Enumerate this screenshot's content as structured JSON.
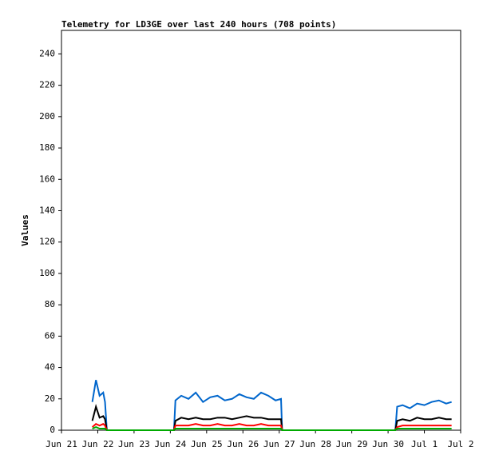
{
  "chart_data": {
    "type": "line",
    "title": "Telemetry for LD3GE over last 240 hours (708 points)",
    "y_label": "Values",
    "x": [
      0.85,
      0.95,
      1.05,
      1.15,
      1.2,
      1.25,
      1.6,
      2.0,
      2.4,
      2.8,
      3.1,
      3.14,
      3.3,
      3.5,
      3.7,
      3.9,
      4.1,
      4.3,
      4.5,
      4.7,
      4.9,
      5.1,
      5.3,
      5.5,
      5.7,
      5.9,
      6.05,
      6.08,
      6.4,
      6.8,
      7.2,
      7.6,
      8.0,
      8.4,
      8.8,
      9.2,
      9.25,
      9.4,
      9.6,
      9.8,
      10.0,
      10.2,
      10.4,
      10.6,
      10.75
    ],
    "series": [
      {
        "color": "#0066cc",
        "values": [
          18,
          32,
          22,
          24,
          18,
          0,
          0,
          0,
          0,
          0,
          0,
          19,
          22,
          20,
          24,
          18,
          21,
          22,
          19,
          20,
          23,
          21,
          20,
          24,
          22,
          19,
          20,
          0,
          0,
          0,
          0,
          0,
          0,
          0,
          0,
          0,
          15,
          16,
          14,
          17,
          16,
          18,
          19,
          17,
          18
        ]
      },
      {
        "color": "#000000",
        "values": [
          6,
          15,
          8,
          9,
          7,
          0,
          0,
          0,
          0,
          0,
          0,
          6,
          8,
          7,
          8,
          7,
          7,
          8,
          8,
          7,
          8,
          9,
          8,
          8,
          7,
          7,
          7,
          0,
          0,
          0,
          0,
          0,
          0,
          0,
          0,
          0,
          6,
          7,
          6,
          8,
          7,
          7,
          8,
          7,
          7
        ]
      },
      {
        "color": "#ff0000",
        "values": [
          2,
          4,
          3,
          4,
          3,
          0,
          0,
          0,
          0,
          0,
          0,
          3,
          3,
          3,
          4,
          3,
          3,
          4,
          3,
          3,
          4,
          3,
          3,
          4,
          3,
          3,
          3,
          0,
          0,
          0,
          0,
          0,
          0,
          0,
          0,
          0,
          2,
          3,
          3,
          3,
          3,
          3,
          3,
          3,
          3
        ]
      },
      {
        "color": "#00aa00",
        "values": [
          1,
          2,
          1,
          1,
          1,
          0,
          0,
          0,
          0,
          0,
          0,
          1,
          1,
          1,
          1,
          1,
          1,
          1,
          1,
          1,
          1,
          1,
          1,
          1,
          1,
          1,
          1,
          0,
          0,
          0,
          0,
          0,
          0,
          0,
          0,
          0,
          1,
          1,
          1,
          1,
          1,
          1,
          1,
          1,
          1
        ]
      }
    ],
    "xlim": [
      0,
      11
    ],
    "xticks": [
      {
        "value": 0,
        "label": "Jun 21"
      },
      {
        "value": 1,
        "label": "Jun 22"
      },
      {
        "value": 2,
        "label": "Jun 23"
      },
      {
        "value": 3,
        "label": "Jun 24"
      },
      {
        "value": 4,
        "label": "Jun 25"
      },
      {
        "value": 5,
        "label": "Jun 26"
      },
      {
        "value": 6,
        "label": "Jun 27"
      },
      {
        "value": 7,
        "label": "Jun 28"
      },
      {
        "value": 8,
        "label": "Jun 29"
      },
      {
        "value": 9,
        "label": "Jun 30"
      },
      {
        "value": 10,
        "label": "Jul 1"
      },
      {
        "value": 11,
        "label": "Jul 2"
      }
    ],
    "ylim": [
      0,
      255
    ],
    "yticks": [
      0,
      20,
      40,
      60,
      80,
      100,
      120,
      140,
      160,
      180,
      200,
      220,
      240
    ]
  }
}
